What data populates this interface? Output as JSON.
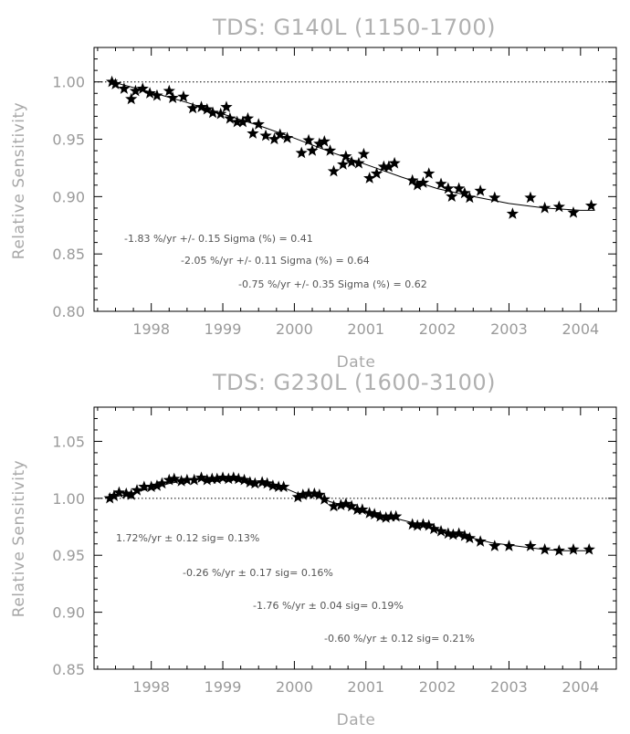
{
  "chart_data": [
    {
      "type": "scatter",
      "title": "TDS: G140L (1150-1700)",
      "xlabel": "Date",
      "ylabel": "Relative Sensitivity",
      "xlim": [
        1997.2,
        2004.5
      ],
      "ylim": [
        0.8,
        1.03
      ],
      "xticks": [
        "1998",
        "1999",
        "2000",
        "2001",
        "2002",
        "2003",
        "2004"
      ],
      "yticks": [
        "0.80",
        "0.85",
        "0.90",
        "0.95",
        "1.00"
      ],
      "reference_line": 1.0,
      "annotations": [
        "-1.83 %/yr +/-  0.15    Sigma (%) =  0.41",
        "-2.05 %/yr +/-  0.11    Sigma (%) =  0.64",
        "-0.75 %/yr +/-  0.35    Sigma (%) =  0.62"
      ],
      "series": [
        {
          "marker": "star",
          "x": [
            1997.45,
            1997.5,
            1997.62,
            1997.72,
            1997.78,
            1997.88,
            1997.98,
            1998.08,
            1998.25,
            1998.3,
            1998.45,
            1998.58,
            1998.7,
            1998.78,
            1998.86,
            1998.97,
            1999.05,
            1999.1,
            1999.2,
            1999.28,
            1999.35,
            1999.42,
            1999.5,
            1999.6,
            1999.72,
            1999.8,
            1999.9,
            2000.1,
            2000.2,
            2000.25,
            2000.35,
            2000.42,
            2000.5,
            2000.55,
            2000.68,
            2000.72,
            2000.8,
            2000.9,
            2000.97,
            2001.05,
            2001.15,
            2001.25,
            2001.32,
            2001.4,
            2001.65,
            2001.72,
            2001.8,
            2001.88,
            2002.05,
            2002.15,
            2002.2,
            2002.3,
            2002.38,
            2002.45,
            2002.6,
            2002.8,
            2003.05,
            2003.3,
            2003.5,
            2003.7,
            2003.9,
            2004.15
          ],
          "y": [
            1.0,
            0.998,
            0.994,
            0.985,
            0.992,
            0.994,
            0.99,
            0.988,
            0.992,
            0.986,
            0.987,
            0.977,
            0.978,
            0.976,
            0.973,
            0.972,
            0.978,
            0.968,
            0.965,
            0.965,
            0.968,
            0.955,
            0.963,
            0.953,
            0.95,
            0.954,
            0.951,
            0.938,
            0.949,
            0.94,
            0.946,
            0.948,
            0.94,
            0.922,
            0.928,
            0.935,
            0.93,
            0.929,
            0.937,
            0.916,
            0.92,
            0.926,
            0.926,
            0.929,
            0.914,
            0.91,
            0.912,
            0.92,
            0.911,
            0.907,
            0.9,
            0.907,
            0.903,
            0.899,
            0.905,
            0.899,
            0.885,
            0.899,
            0.89,
            0.891,
            0.886,
            0.892
          ]
        }
      ],
      "fit": {
        "x": [
          1997.45,
          1998.0,
          1998.5,
          1999.0,
          1999.5,
          2000.0,
          2000.5,
          2001.0,
          2001.5,
          2002.0,
          2002.5,
          2003.0,
          2003.5,
          2004.0,
          2004.2
        ],
        "y": [
          1.0,
          0.991,
          0.982,
          0.972,
          0.962,
          0.951,
          0.939,
          0.928,
          0.917,
          0.907,
          0.9,
          0.894,
          0.89,
          0.888,
          0.888
        ]
      }
    },
    {
      "type": "scatter",
      "title": "TDS: G230L (1600-3100)",
      "xlabel": "Date",
      "ylabel": "Relative Sensitivity",
      "xlim": [
        1997.2,
        2004.5
      ],
      "ylim": [
        0.85,
        1.08
      ],
      "xticks": [
        "1998",
        "1999",
        "2000",
        "2001",
        "2002",
        "2003",
        "2004"
      ],
      "yticks": [
        "0.85",
        "0.90",
        "0.95",
        "1.00",
        "1.05"
      ],
      "reference_line": 1.0,
      "annotations": [
        "1.72%/yr ± 0.12 sig= 0.13%",
        "-0.26 %/yr ± 0.17 sig= 0.16%",
        "-1.76 %/yr ± 0.04 sig= 0.19%",
        "-0.60 %/yr ± 0.12 sig= 0.21%"
      ],
      "series": [
        {
          "marker": "star",
          "x": [
            1997.42,
            1997.48,
            1997.55,
            1997.65,
            1997.72,
            1997.8,
            1997.9,
            1998.0,
            1998.08,
            1998.15,
            1998.25,
            1998.32,
            1998.42,
            1998.5,
            1998.6,
            1998.7,
            1998.78,
            1998.85,
            1998.92,
            1999.0,
            1999.08,
            1999.15,
            1999.22,
            1999.3,
            1999.38,
            1999.45,
            1999.55,
            1999.62,
            1999.7,
            1999.78,
            1999.85,
            2000.05,
            2000.12,
            2000.2,
            2000.28,
            2000.35,
            2000.42,
            2000.55,
            2000.65,
            2000.72,
            2000.8,
            2000.88,
            2000.95,
            2001.05,
            2001.12,
            2001.2,
            2001.28,
            2001.35,
            2001.42,
            2001.65,
            2001.72,
            2001.8,
            2001.88,
            2001.95,
            2002.05,
            2002.15,
            2002.22,
            2002.3,
            2002.38,
            2002.45,
            2002.6,
            2002.8,
            2003.0,
            2003.3,
            2003.5,
            2003.7,
            2003.9,
            2004.12
          ],
          "y": [
            1.0,
            1.002,
            1.005,
            1.004,
            1.003,
            1.007,
            1.01,
            1.01,
            1.011,
            1.013,
            1.016,
            1.017,
            1.015,
            1.016,
            1.016,
            1.018,
            1.016,
            1.017,
            1.017,
            1.018,
            1.017,
            1.018,
            1.017,
            1.016,
            1.014,
            1.013,
            1.014,
            1.013,
            1.011,
            1.01,
            1.01,
            1.001,
            1.003,
            1.004,
            1.004,
            1.003,
            0.999,
            0.993,
            0.994,
            0.995,
            0.993,
            0.99,
            0.99,
            0.987,
            0.986,
            0.984,
            0.983,
            0.984,
            0.984,
            0.977,
            0.976,
            0.977,
            0.976,
            0.973,
            0.971,
            0.969,
            0.968,
            0.969,
            0.967,
            0.965,
            0.962,
            0.958,
            0.958,
            0.958,
            0.955,
            0.954,
            0.955,
            0.955
          ]
        }
      ],
      "fit": {
        "x": [
          1997.42,
          1997.75,
          1998.0,
          1998.25,
          1998.5,
          1998.75,
          1999.0,
          1999.25,
          1999.5,
          1999.75,
          1999.9,
          2000.05,
          2000.2,
          2000.35,
          2000.5,
          2000.75,
          2001.0,
          2001.25,
          2001.5,
          2001.75,
          2002.0,
          2002.25,
          2002.5,
          2002.75,
          2003.0,
          2003.25,
          2003.5,
          2003.75,
          2004.0,
          2004.15
        ],
        "y": [
          1.0,
          1.005,
          1.009,
          1.013,
          1.016,
          1.017,
          1.017,
          1.016,
          1.014,
          1.011,
          1.008,
          1.004,
          1.003,
          1.001,
          0.997,
          0.993,
          0.989,
          0.985,
          0.981,
          0.977,
          0.973,
          0.969,
          0.965,
          0.961,
          0.959,
          0.957,
          0.955,
          0.954,
          0.954,
          0.954
        ]
      }
    }
  ]
}
